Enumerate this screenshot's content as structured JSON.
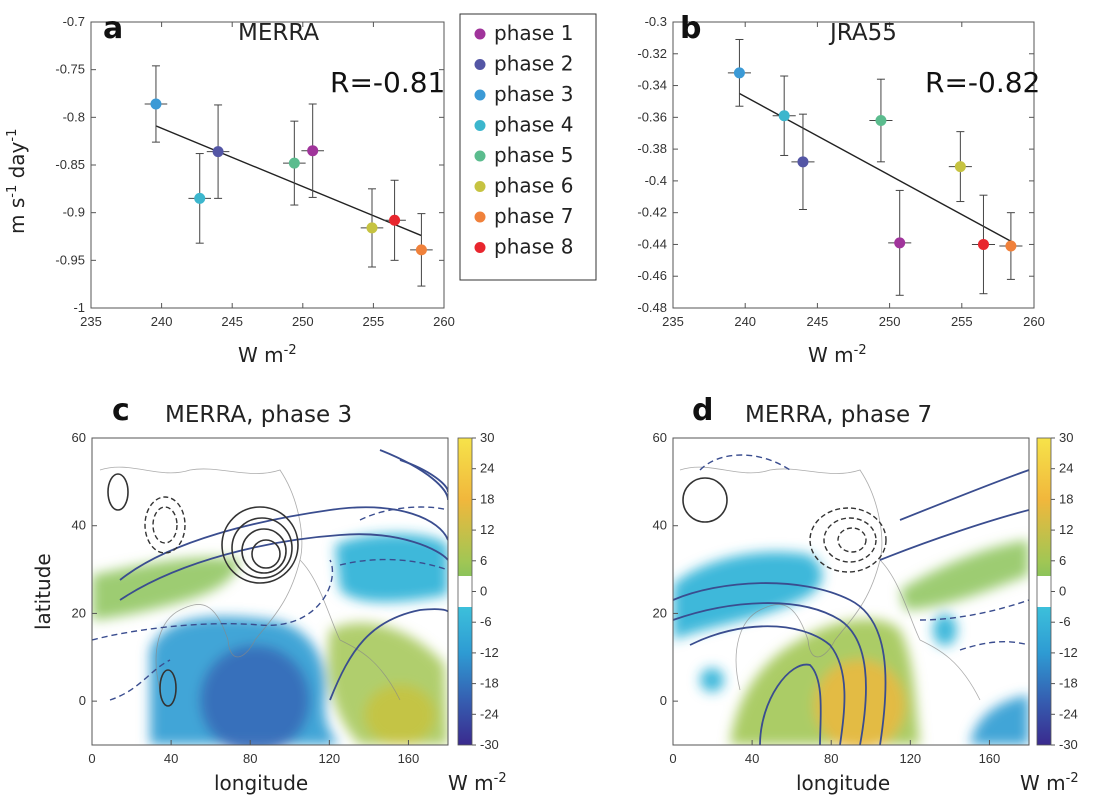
{
  "chart_data": [
    {
      "type": "scatter",
      "panel_label": "a",
      "title": "MERRA",
      "annotation": "R=-0.81",
      "xlabel": "W m",
      "xlabel_sup": "-2",
      "ylabel_parts": [
        "m s",
        "-1",
        " day",
        "-1"
      ],
      "xlim": [
        235,
        260
      ],
      "ylim": [
        -1,
        -0.7
      ],
      "xticks": [
        235,
        240,
        245,
        250,
        255,
        260
      ],
      "yticks": [
        -1,
        -0.95,
        -0.9,
        -0.85,
        -0.8,
        -0.75,
        -0.7
      ],
      "xtick_labels": [
        "235",
        "240",
        "245",
        "250",
        "255",
        "260"
      ],
      "ytick_labels": [
        "-1",
        "-0.95",
        "-0.9",
        "-0.85",
        "-0.8",
        "-0.75",
        "-0.7"
      ],
      "grid": false,
      "legend_position": "top-right",
      "series": [
        {
          "name": "phase 1",
          "color": "#a0349b",
          "x": 250.7,
          "y": -0.835,
          "x_err": 0.8,
          "y_err": 0.049
        },
        {
          "name": "phase 2",
          "color": "#5456a5",
          "x": 244.0,
          "y": -0.836,
          "x_err": 0.8,
          "y_err": 0.049
        },
        {
          "name": "phase 3",
          "color": "#3b9ad6",
          "x": 239.6,
          "y": -0.786,
          "x_err": 0.8,
          "y_err": 0.04
        },
        {
          "name": "phase 4",
          "color": "#3cb6cd",
          "x": 242.7,
          "y": -0.885,
          "x_err": 0.8,
          "y_err": 0.047
        },
        {
          "name": "phase 5",
          "color": "#5bbc8e",
          "x": 249.4,
          "y": -0.848,
          "x_err": 0.8,
          "y_err": 0.044
        },
        {
          "name": "phase 6",
          "color": "#c6c341",
          "x": 254.9,
          "y": -0.916,
          "x_err": 0.8,
          "y_err": 0.041
        },
        {
          "name": "phase 7",
          "color": "#f0813b",
          "x": 258.4,
          "y": -0.939,
          "x_err": 0.8,
          "y_err": 0.038
        },
        {
          "name": "phase 8",
          "color": "#e8262e",
          "x": 256.5,
          "y": -0.908,
          "x_err": 0.8,
          "y_err": 0.042
        }
      ],
      "fit_line": {
        "x": [
          239.6,
          258.4
        ],
        "y": [
          -0.809,
          -0.924
        ]
      }
    },
    {
      "type": "scatter",
      "panel_label": "b",
      "title": "JRA55",
      "annotation": "R=-0.82",
      "xlabel": "W m",
      "xlabel_sup": "-2",
      "xlim": [
        235,
        260
      ],
      "ylim": [
        -0.48,
        -0.3
      ],
      "xticks": [
        235,
        240,
        245,
        250,
        255,
        260
      ],
      "yticks": [
        -0.48,
        -0.46,
        -0.44,
        -0.42,
        -0.4,
        -0.38,
        -0.36,
        -0.34,
        -0.32,
        -0.3
      ],
      "xtick_labels": [
        "235",
        "240",
        "245",
        "250",
        "255",
        "260"
      ],
      "ytick_labels": [
        "-0.48",
        "-0.46",
        "-0.44",
        "-0.42",
        "-0.4",
        "-0.38",
        "-0.36",
        "-0.34",
        "-0.32",
        "-0.3"
      ],
      "grid": false,
      "points": [
        {
          "color": "#a0349b",
          "x": 250.7,
          "y": -0.439,
          "x_err": 0.8,
          "y_err": 0.033
        },
        {
          "color": "#5456a5",
          "x": 244.0,
          "y": -0.388,
          "x_err": 0.8,
          "y_err": 0.03
        },
        {
          "color": "#3b9ad6",
          "x": 239.6,
          "y": -0.332,
          "x_err": 0.8,
          "y_err": 0.021
        },
        {
          "color": "#3cb6cd",
          "x": 242.7,
          "y": -0.359,
          "x_err": 0.8,
          "y_err": 0.025
        },
        {
          "color": "#5bbc8e",
          "x": 249.4,
          "y": -0.362,
          "x_err": 0.8,
          "y_err": 0.026
        },
        {
          "color": "#c6c341",
          "x": 254.9,
          "y": -0.391,
          "x_err": 0.8,
          "y_err": 0.022
        },
        {
          "color": "#f0813b",
          "x": 258.4,
          "y": -0.441,
          "x_err": 0.8,
          "y_err": 0.021
        },
        {
          "color": "#e8262e",
          "x": 256.5,
          "y": -0.44,
          "x_err": 0.8,
          "y_err": 0.031
        }
      ],
      "fit_line": {
        "x": [
          239.6,
          258.4
        ],
        "y": [
          -0.345,
          -0.438
        ]
      }
    },
    {
      "type": "heatmap",
      "panel_label": "c",
      "title": "MERRA, phase 3",
      "xlabel": "longitude",
      "ylabel": "latitude",
      "xlim": [
        0,
        180
      ],
      "ylim": [
        -10,
        60
      ],
      "xticks": [
        0,
        40,
        80,
        120,
        160
      ],
      "yticks": [
        0,
        20,
        40,
        60
      ],
      "xtick_labels": [
        "0",
        "40",
        "80",
        "120",
        "160"
      ],
      "ytick_labels": [
        "0",
        "20",
        "40",
        "60"
      ],
      "colorbar": {
        "ticks": [
          30,
          24,
          18,
          12,
          6,
          0,
          -6,
          -12,
          -18,
          -24,
          -30
        ],
        "tick_labels": [
          "30",
          "24",
          "18",
          "12",
          "6",
          "0",
          "-6",
          "-12",
          "-18",
          "-24",
          "-30"
        ],
        "unit": "W m",
        "unit_sup": "-2"
      },
      "shading": [
        {
          "label": "negative anomaly",
          "lon_center": 85,
          "lat_center": 3,
          "value": -22
        },
        {
          "label": "positive anomaly",
          "lon_center": 135,
          "lat_center": 5,
          "value": 6
        },
        {
          "label": "positive anomaly",
          "lon_center": 40,
          "lat_center": 24,
          "value": 6
        },
        {
          "label": "negative anomaly",
          "lon_center": 152,
          "lat_center": 32,
          "value": -8
        }
      ]
    },
    {
      "type": "heatmap",
      "panel_label": "d",
      "title": "MERRA, phase 7",
      "xlabel": "longitude",
      "xlim": [
        0,
        180
      ],
      "ylim": [
        -10,
        60
      ],
      "xticks": [
        0,
        40,
        80,
        120,
        160
      ],
      "yticks": [
        0,
        20,
        40,
        60
      ],
      "xtick_labels": [
        "0",
        "40",
        "80",
        "120",
        "160"
      ],
      "ytick_labels": [
        "0",
        "20",
        "40",
        "60"
      ],
      "colorbar": {
        "ticks": [
          30,
          24,
          18,
          12,
          6,
          0,
          -6,
          -12,
          -18,
          -24,
          -30
        ],
        "tick_labels": [
          "30",
          "24",
          "18",
          "12",
          "6",
          "0",
          "-6",
          "-12",
          "-18",
          "-24",
          "-30"
        ],
        "unit": "W m",
        "unit_sup": "-2"
      },
      "shading": [
        {
          "label": "positive anomaly",
          "lon_center": 95,
          "lat_center": 0,
          "value": 22
        },
        {
          "label": "negative anomaly",
          "lon_center": 40,
          "lat_center": 25,
          "value": -8
        },
        {
          "label": "positive anomaly",
          "lon_center": 160,
          "lat_center": 30,
          "value": 6
        },
        {
          "label": "negative anomaly",
          "lon_center": 165,
          "lat_center": -5,
          "value": -10
        }
      ]
    }
  ]
}
